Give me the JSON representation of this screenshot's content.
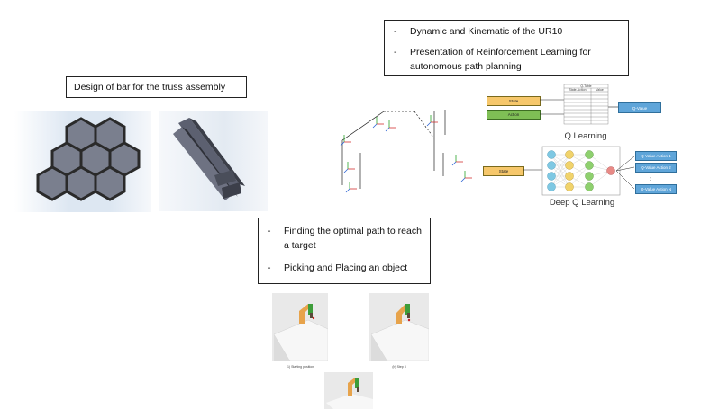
{
  "truss_box": {
    "title": "Design of bar for the truss assembly"
  },
  "ur10_box": {
    "items": [
      "Dynamic and Kinematic of the UR10",
      "Presentation of Reinforcement Learning for autonomous path planning"
    ]
  },
  "target_box": {
    "items": [
      "Finding the optimal path to reach a target",
      "Picking and Placing an object"
    ]
  },
  "q_learning": {
    "caption": "Q Learning",
    "state_label": "State",
    "action_label": "Action",
    "table_title": "Q-Table",
    "table_headers": [
      "State-Action",
      "Value"
    ],
    "output_label": "Q-Value"
  },
  "deep_q_learning": {
    "caption": "Deep Q Learning",
    "state_label": "State",
    "outputs": [
      "Q-Value Action 1",
      "Q-Value Action 2",
      "Q-Value Action N"
    ]
  },
  "robot_images": {
    "captions": [
      "(1) Starting position",
      "(b) Step 3"
    ]
  },
  "colors": {
    "hex_fill": "#7a7f8e",
    "hex_edge": "#2a2a2a",
    "state_fill": "#f6c76b",
    "action_fill": "#7fbf55",
    "q_blue": "#5fa5d9",
    "robot_orange": "#e7a34b",
    "robot_green": "#3d9d3a"
  }
}
